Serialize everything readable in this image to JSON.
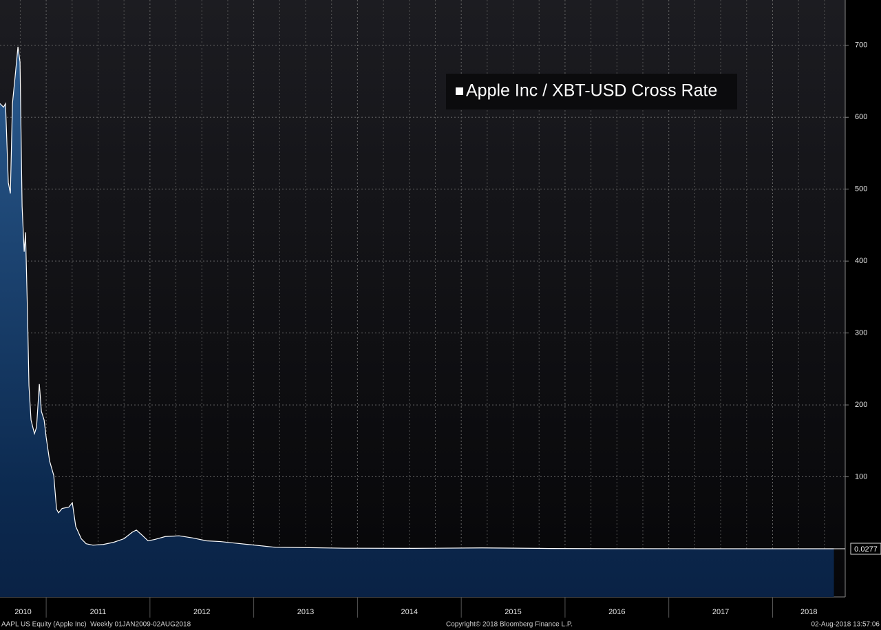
{
  "chart_data": {
    "type": "line",
    "series": [
      {
        "name": "Apple Inc / XBT-USD Cross Rate",
        "color": "#ffffff",
        "fill": "#0d2a50",
        "x": [
          2010.555,
          2010.589,
          2010.608,
          2010.635,
          2010.655,
          2010.675,
          2010.701,
          2010.728,
          2010.748,
          2010.768,
          2010.788,
          2010.801,
          2010.821,
          2010.834,
          2010.854,
          2010.887,
          2010.907,
          2010.934,
          2010.954,
          2010.98,
          2011.0,
          2011.033,
          2011.073,
          2011.1,
          2011.119,
          2011.153,
          2011.219,
          2011.252,
          2011.285,
          2011.338,
          2011.385,
          2011.451,
          2011.551,
          2011.65,
          2011.75,
          2011.829,
          2011.869,
          2011.916,
          2011.982,
          2012.048,
          2012.148,
          2012.281,
          2012.413,
          2012.546,
          2012.679,
          2012.812,
          2012.944,
          2013.077,
          2013.21,
          2013.541,
          2013.873,
          2014.537,
          2015.2,
          2015.731,
          2015.864,
          2016.527,
          2017.191,
          2017.855,
          2018.591
        ],
        "values": [
          619,
          614,
          619,
          509,
          494,
          619,
          657,
          698,
          677,
          476,
          413,
          440,
          322,
          227,
          179,
          160,
          169,
          229,
          191,
          179,
          155,
          122,
          102,
          55,
          50,
          56,
          58,
          64,
          31,
          14,
          7,
          5,
          6,
          9,
          14,
          23,
          26,
          20,
          11,
          13,
          17,
          18,
          15,
          11,
          10,
          8,
          6,
          4,
          2,
          1.5,
          0.8,
          0.6,
          1.2,
          0.6,
          0.4,
          0.1,
          0.05,
          0.03,
          0.0277
        ]
      }
    ],
    "xlim": [
      2010.555,
      2018.7
    ],
    "xticks": [
      2011,
      2012,
      2013,
      2014,
      2015,
      2016,
      2017,
      2018
    ],
    "xlabels": [
      2010,
      2011,
      2012,
      2013,
      2014,
      2015,
      2016,
      2017,
      2018
    ],
    "ylim": [
      -67,
      763
    ],
    "yticks": [
      100,
      200,
      300,
      400,
      500,
      600,
      700
    ],
    "grid": true,
    "legend_loc": "upper right",
    "footer": {
      "left": "AAPL US Equity (Apple Inc)  Weekly 01JAN2009-02AUG2018",
      "center": "Copyright© 2018 Bloomberg Finance L.P.",
      "right": "02-Aug-2018 13:57:06"
    }
  }
}
